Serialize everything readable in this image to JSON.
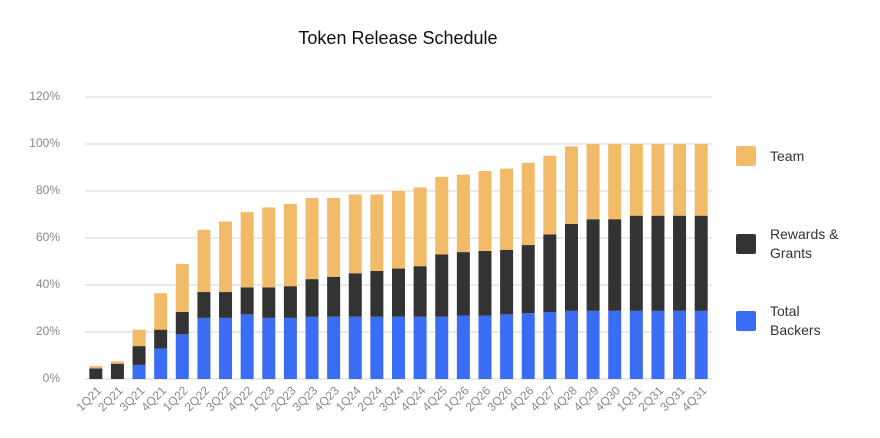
{
  "chart_data": {
    "type": "stacked_bar",
    "title": "Token Release Schedule",
    "categories": [
      "1Q21",
      "2Q21",
      "3Q21",
      "4Q21",
      "1Q22",
      "2Q22",
      "3Q22",
      "4Q22",
      "1Q23",
      "2Q23",
      "3Q23",
      "4Q23",
      "1Q24",
      "2Q24",
      "3Q24",
      "4Q24",
      "4Q25",
      "1Q26",
      "2Q26",
      "3Q26",
      "4Q26",
      "4Q27",
      "4Q28",
      "4Q29",
      "4Q30",
      "1Q31",
      "2Q31",
      "3Q31",
      "4Q31"
    ],
    "series": [
      {
        "name": "Total Backers",
        "color": "#3a6cf4",
        "values": [
          0,
          0,
          6,
          13,
          19,
          26,
          26,
          27.5,
          26,
          26,
          26.5,
          26.5,
          26.5,
          26.5,
          26.5,
          26.5,
          26.5,
          27,
          27,
          27.5,
          28,
          28.5,
          29,
          29,
          29,
          29,
          29,
          29,
          29
        ]
      },
      {
        "name": "Rewards & Grants",
        "color": "#333333",
        "values": [
          4.5,
          6.5,
          8,
          8,
          9.5,
          11,
          11,
          11.5,
          13,
          13.5,
          16,
          17,
          18.5,
          19.5,
          20.5,
          21.5,
          26.5,
          27,
          27.5,
          27.5,
          29,
          33,
          37,
          39,
          39,
          40.5,
          40.5,
          40.5,
          40.5
        ]
      },
      {
        "name": "Team",
        "color": "#f2bb6a",
        "values": [
          1,
          1,
          7,
          15.5,
          20.5,
          26.5,
          30,
          32,
          34,
          35,
          34.5,
          33.5,
          33.5,
          32.5,
          33,
          33.5,
          33,
          33,
          34,
          34.5,
          35,
          33.5,
          33,
          32,
          32,
          30.5,
          30.5,
          30.5,
          30.5
        ]
      }
    ],
    "ylim": [
      0,
      120
    ],
    "yticks": [
      {
        "value": 0,
        "label": "0%"
      },
      {
        "value": 20,
        "label": "20%"
      },
      {
        "value": 40,
        "label": "40%"
      },
      {
        "value": 60,
        "label": "60%"
      },
      {
        "value": 80,
        "label": "80%"
      },
      {
        "value": 100,
        "label": "100%"
      },
      {
        "value": 120,
        "label": "120%"
      }
    ],
    "grid": true,
    "legend": "right"
  }
}
